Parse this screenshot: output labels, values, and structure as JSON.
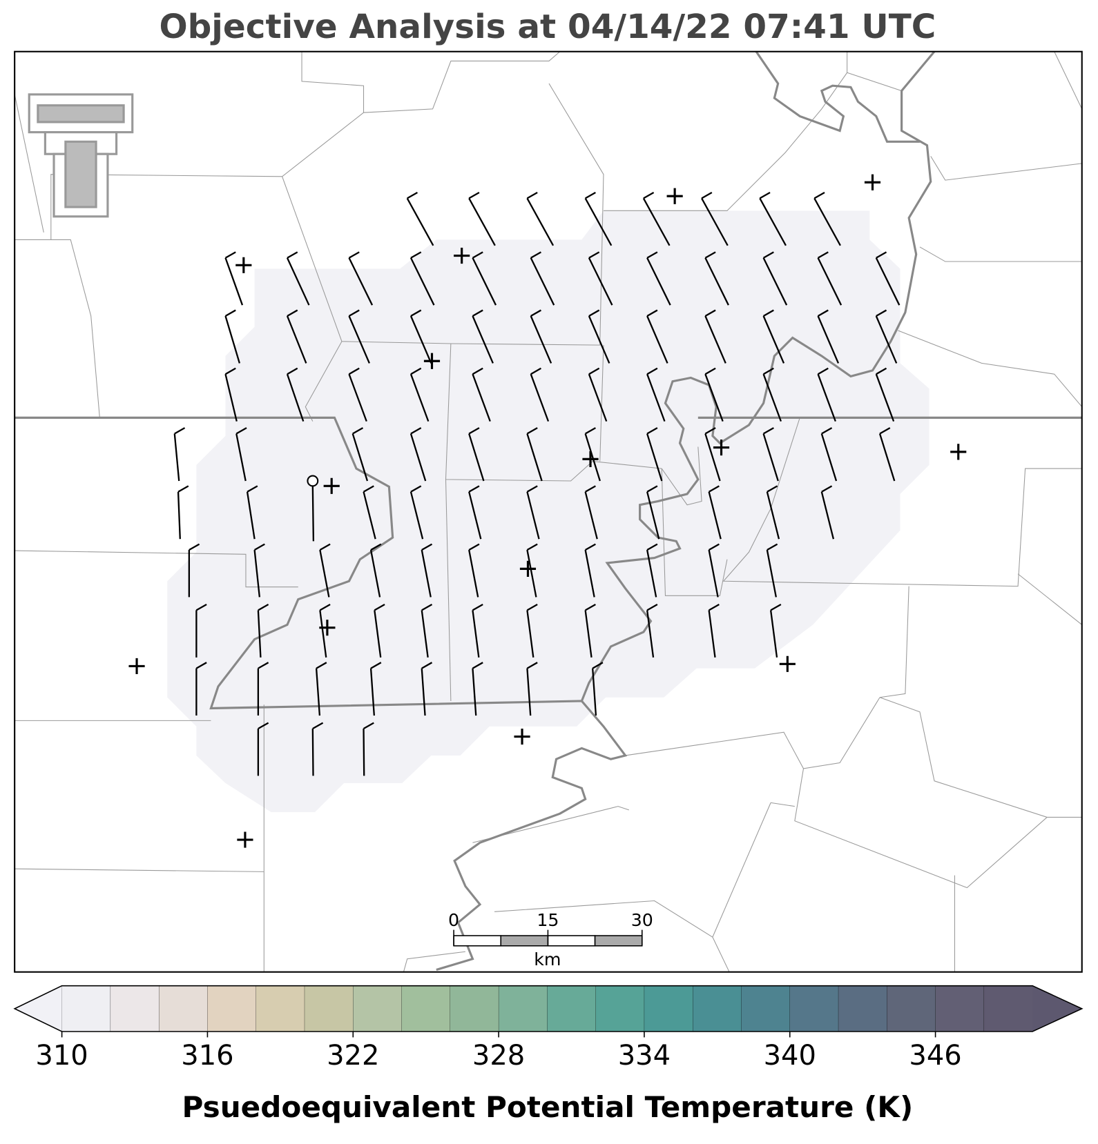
{
  "title": "Objective Analysis at 04/14/22 07:41 UTC",
  "scale_bar": {
    "ticks": [
      0,
      15,
      30
    ],
    "unit": "km"
  },
  "colorbar": {
    "label": "Psuedoequivalent Potential Temperature (K)",
    "range": [
      310,
      350
    ],
    "ticks": [
      310,
      316,
      322,
      328,
      334,
      340,
      346
    ],
    "under_color": "#f1f1f6",
    "over_color": "#5d586f",
    "colors": [
      "#efeff3",
      "#ece7e8",
      "#e6ddd7",
      "#e2d3c0",
      "#d7cdb0",
      "#c7c6a5",
      "#b4c4a6",
      "#a1bf9d",
      "#91b799",
      "#7fb29a",
      "#67aa98",
      "#56a397",
      "#4c9a96",
      "#4a8f94",
      "#4e8390",
      "#55778a",
      "#5a6d82",
      "#5f6679",
      "#625f74",
      "#5f5a70"
    ]
  }
}
